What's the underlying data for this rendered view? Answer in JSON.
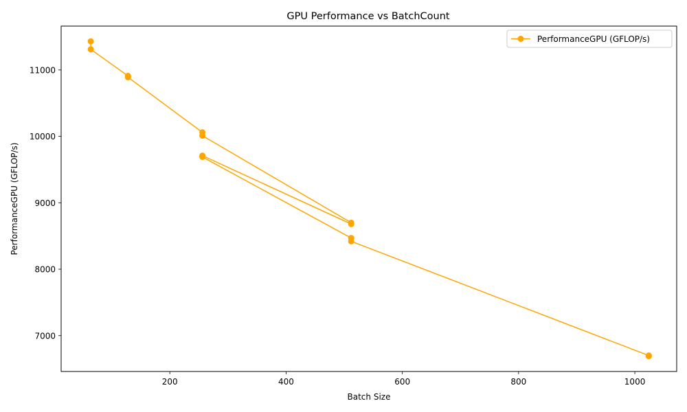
{
  "chart_data": {
    "type": "line",
    "title": "GPU Performance vs BatchCount",
    "xlabel": "Batch Size",
    "ylabel": "PerformanceGPU (GFLOP/s)",
    "xlim": [
      13,
      1072
    ],
    "ylim": [
      6460,
      11660
    ],
    "xticks": [
      200,
      400,
      600,
      800,
      1000
    ],
    "yticks": [
      7000,
      8000,
      9000,
      10000,
      11000
    ],
    "grid": false,
    "legend_position": "upper-right",
    "series": [
      {
        "name": "PerformanceGPU (GFLOP/s)",
        "color": "#ffa500",
        "marker": "circle",
        "x": [
          64,
          64,
          128,
          128,
          256,
          256,
          512,
          512,
          256,
          256,
          512,
          512,
          1024,
          1024
        ],
        "y": [
          11430,
          11310,
          10910,
          10890,
          10060,
          10010,
          8700,
          8680,
          9710,
          9690,
          8470,
          8420,
          6700,
          6690
        ]
      }
    ]
  }
}
